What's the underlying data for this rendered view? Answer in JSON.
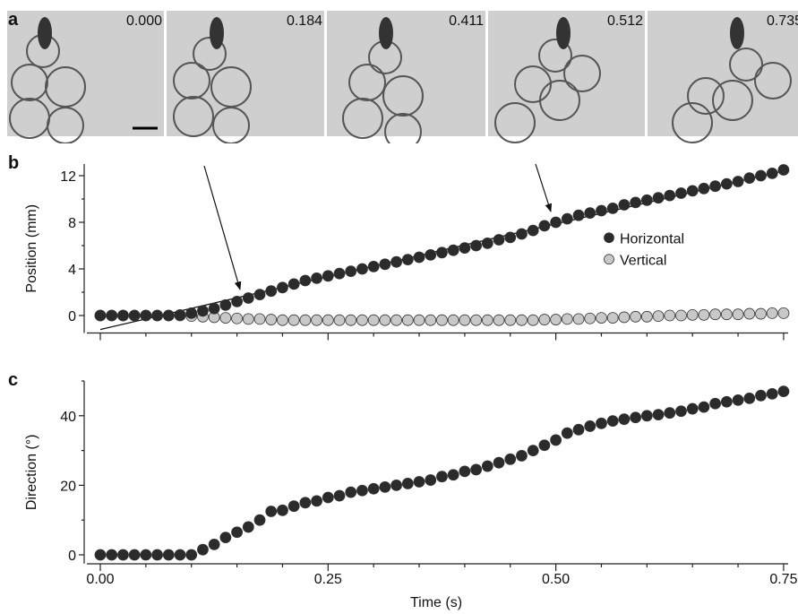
{
  "panel_a": {
    "label": "a",
    "frame_times": [
      "0.000",
      "0.184",
      "0.411",
      "0.512",
      "0.735"
    ]
  },
  "chart_data": [
    {
      "type": "scatter",
      "panel_label": "b",
      "y_label": "Position (mm)",
      "x": [
        0,
        0.0125,
        0.025,
        0.0375,
        0.05,
        0.0625,
        0.075,
        0.0875,
        0.1,
        0.1125,
        0.125,
        0.1375,
        0.15,
        0.1625,
        0.175,
        0.1875,
        0.2,
        0.2125,
        0.225,
        0.2375,
        0.25,
        0.2625,
        0.275,
        0.2875,
        0.3,
        0.3125,
        0.325,
        0.3375,
        0.35,
        0.3625,
        0.375,
        0.3875,
        0.4,
        0.4125,
        0.425,
        0.4375,
        0.45,
        0.4625,
        0.475,
        0.4875,
        0.5,
        0.5125,
        0.525,
        0.5375,
        0.55,
        0.5625,
        0.575,
        0.5875,
        0.6,
        0.6125,
        0.625,
        0.6375,
        0.65,
        0.6625,
        0.675,
        0.6875,
        0.7,
        0.7125,
        0.725,
        0.7375,
        0.75
      ],
      "series": [
        {
          "name": "Horizontal",
          "color": "#2b2b2b",
          "values": [
            0,
            0,
            0,
            0,
            0,
            0,
            0,
            0.05,
            0.2,
            0.4,
            0.6,
            0.9,
            1.2,
            1.5,
            1.8,
            2.1,
            2.4,
            2.7,
            3.0,
            3.2,
            3.4,
            3.6,
            3.8,
            4.0,
            4.2,
            4.4,
            4.6,
            4.8,
            5.0,
            5.2,
            5.4,
            5.6,
            5.8,
            6.0,
            6.2,
            6.5,
            6.7,
            7.0,
            7.3,
            7.7,
            8.0,
            8.3,
            8.6,
            8.8,
            9.0,
            9.2,
            9.5,
            9.7,
            9.9,
            10.1,
            10.3,
            10.5,
            10.7,
            10.9,
            11.1,
            11.3,
            11.5,
            11.8,
            12.0,
            12.2,
            12.5
          ]
        },
        {
          "name": "Vertical",
          "color": "#c8c8c8",
          "values": [
            0,
            0,
            0,
            0,
            0,
            0,
            0,
            0,
            -0.05,
            -0.1,
            -0.15,
            -0.2,
            -0.25,
            -0.3,
            -0.3,
            -0.35,
            -0.4,
            -0.4,
            -0.4,
            -0.4,
            -0.4,
            -0.4,
            -0.4,
            -0.4,
            -0.4,
            -0.4,
            -0.4,
            -0.4,
            -0.4,
            -0.4,
            -0.4,
            -0.4,
            -0.4,
            -0.4,
            -0.4,
            -0.4,
            -0.4,
            -0.4,
            -0.4,
            -0.35,
            -0.35,
            -0.3,
            -0.3,
            -0.25,
            -0.2,
            -0.2,
            -0.15,
            -0.1,
            -0.1,
            -0.05,
            0,
            0,
            0.05,
            0.05,
            0.1,
            0.1,
            0.1,
            0.15,
            0.15,
            0.2,
            0.2
          ]
        }
      ],
      "trend_line": {
        "x": [
          0,
          0.75
        ],
        "y": [
          -1.2,
          12.4
        ]
      },
      "legend": "center-right",
      "xlim": [
        -0.0177,
        0.755
      ],
      "xticks": [
        0,
        0.25,
        0.5,
        0.75
      ],
      "xminorticks": [
        0.05,
        0.1,
        0.15,
        0.2,
        0.3,
        0.35,
        0.4,
        0.45,
        0.55,
        0.6,
        0.65,
        0.7
      ],
      "ylim": [
        -1.5,
        13
      ],
      "yticks": [
        0,
        4,
        8,
        12
      ],
      "yminorticks": [
        2,
        6,
        10
      ]
    },
    {
      "type": "scatter",
      "panel_label": "c",
      "y_label": "Direction (°)",
      "x_label": "Time (s)",
      "x": [
        0,
        0.0125,
        0.025,
        0.0375,
        0.05,
        0.0625,
        0.075,
        0.0875,
        0.1,
        0.1125,
        0.125,
        0.1375,
        0.15,
        0.1625,
        0.175,
        0.1875,
        0.2,
        0.2125,
        0.225,
        0.2375,
        0.25,
        0.2625,
        0.275,
        0.2875,
        0.3,
        0.3125,
        0.325,
        0.3375,
        0.35,
        0.3625,
        0.375,
        0.3875,
        0.4,
        0.4125,
        0.425,
        0.4375,
        0.45,
        0.4625,
        0.475,
        0.4875,
        0.5,
        0.5125,
        0.525,
        0.5375,
        0.55,
        0.5625,
        0.575,
        0.5875,
        0.6,
        0.6125,
        0.625,
        0.6375,
        0.65,
        0.6625,
        0.675,
        0.6875,
        0.7,
        0.7125,
        0.725,
        0.7375,
        0.75
      ],
      "series": [
        {
          "color": "#2b2b2b",
          "values": [
            0,
            0,
            0,
            0,
            0,
            0,
            0,
            0,
            0,
            1.5,
            3,
            5,
            6.5,
            8,
            10,
            12.5,
            12.8,
            14,
            15,
            15.5,
            16.5,
            17,
            18,
            18.5,
            19,
            19.5,
            20,
            20.5,
            21,
            21.5,
            22.5,
            23,
            24,
            24.5,
            25.5,
            26.5,
            27.5,
            28.5,
            30,
            31.5,
            33,
            35,
            36,
            37,
            37.8,
            38.5,
            39,
            39.5,
            40,
            40.3,
            40.8,
            41.3,
            42,
            42.5,
            43.5,
            44,
            44.5,
            45,
            45.8,
            46.3,
            47
          ]
        }
      ],
      "xlim": [
        -0.0177,
        0.755
      ],
      "xticks": [
        {
          "value": 0,
          "label": "0.00"
        },
        {
          "value": 0.25,
          "label": "0.25"
        },
        {
          "value": 0.5,
          "label": "0.50"
        },
        {
          "value": 0.75,
          "label": "0.75"
        }
      ],
      "xminorticks": [
        0.05,
        0.1,
        0.15,
        0.2,
        0.3,
        0.35,
        0.4,
        0.45,
        0.55,
        0.6,
        0.65,
        0.7
      ],
      "ylim": [
        -2.5,
        50
      ],
      "yticks": [
        0,
        20,
        40
      ],
      "yminorticks": [
        10,
        30,
        50
      ]
    }
  ]
}
